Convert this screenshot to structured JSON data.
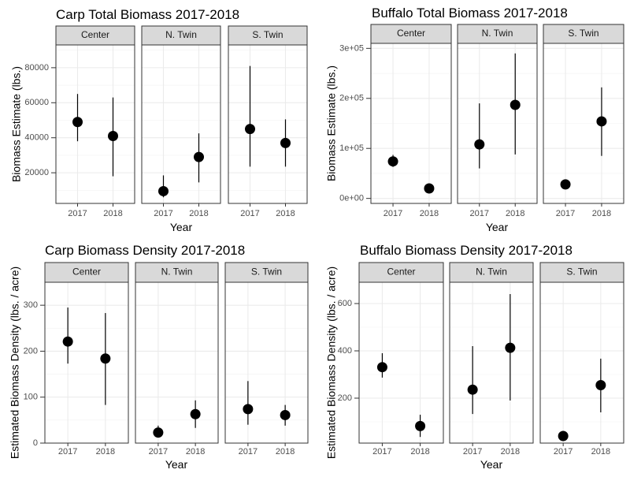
{
  "chart_data": [
    {
      "type": "scatter",
      "title": "Carp Total Biomass 2017-2018",
      "xlabel": "Year",
      "ylabel": "Biomass Estimate (lbs.)",
      "ylim": [
        2500,
        93000
      ],
      "yticks": [
        20000,
        40000,
        60000,
        80000
      ],
      "ytick_labels": [
        "20000",
        "40000",
        "60000",
        "80000"
      ],
      "categories": [
        "2017",
        "2018"
      ],
      "grid": true,
      "panels": [
        {
          "name": "Center",
          "points": [
            {
              "x": "2017",
              "y": 49000,
              "lo": 38000,
              "hi": 65000
            },
            {
              "x": "2018",
              "y": 41000,
              "lo": 18000,
              "hi": 63000
            }
          ]
        },
        {
          "name": "N. Twin",
          "points": [
            {
              "x": "2017",
              "y": 9500,
              "lo": 6000,
              "hi": 18500
            },
            {
              "x": "2018",
              "y": 29000,
              "lo": 14500,
              "hi": 42500
            }
          ]
        },
        {
          "name": "S. Twin",
          "points": [
            {
              "x": "2017",
              "y": 45000,
              "lo": 23500,
              "hi": 81000
            },
            {
              "x": "2018",
              "y": 37000,
              "lo": 23500,
              "hi": 50500
            }
          ]
        }
      ]
    },
    {
      "type": "scatter",
      "title": "Buffalo Total Biomass 2017-2018",
      "xlabel": "Year",
      "ylabel": "Biomass Estimate (lbs.)",
      "ylim": [
        -10000,
        310000
      ],
      "yticks": [
        0,
        100000,
        200000,
        300000
      ],
      "ytick_labels": [
        "0e+00",
        "1e+05",
        "2e+05",
        "3e+05"
      ],
      "categories": [
        "2017",
        "2018"
      ],
      "grid": true,
      "panels": [
        {
          "name": "Center",
          "points": [
            {
              "x": "2017",
              "y": 74000,
              "lo": 63000,
              "hi": 87000
            },
            {
              "x": "2018",
              "y": 20000,
              "lo": 12000,
              "hi": 29000
            }
          ]
        },
        {
          "name": "N. Twin",
          "points": [
            {
              "x": "2017",
              "y": 108000,
              "lo": 60000,
              "hi": 190000
            },
            {
              "x": "2018",
              "y": 187000,
              "lo": 88000,
              "hi": 290000
            }
          ]
        },
        {
          "name": "S. Twin",
          "points": [
            {
              "x": "2017",
              "y": 28000,
              "lo": 22000,
              "hi": 34000
            },
            {
              "x": "2018",
              "y": 154000,
              "lo": 85000,
              "hi": 222000
            }
          ]
        }
      ]
    },
    {
      "type": "scatter",
      "title": "Carp Biomass Density 2017-2018",
      "xlabel": "Year",
      "ylabel": "Estimated Biomass Density (lbs. / acre)",
      "ylim": [
        0,
        350
      ],
      "yticks": [
        0,
        100,
        200,
        300
      ],
      "ytick_labels": [
        "0",
        "100",
        "200",
        "300"
      ],
      "categories": [
        "2017",
        "2018"
      ],
      "grid": true,
      "panels": [
        {
          "name": "Center",
          "points": [
            {
              "x": "2017",
              "y": 221,
              "lo": 173,
              "hi": 295
            },
            {
              "x": "2018",
              "y": 184,
              "lo": 83,
              "hi": 283
            }
          ]
        },
        {
          "name": "N. Twin",
          "points": [
            {
              "x": "2017",
              "y": 23,
              "lo": 12,
              "hi": 38
            },
            {
              "x": "2018",
              "y": 63,
              "lo": 33,
              "hi": 93
            }
          ]
        },
        {
          "name": "S. Twin",
          "points": [
            {
              "x": "2017",
              "y": 74,
              "lo": 40,
              "hi": 135
            },
            {
              "x": "2018",
              "y": 61,
              "lo": 38,
              "hi": 83
            }
          ]
        }
      ]
    },
    {
      "type": "scatter",
      "title": "Buffalo Biomass Density 2017-2018",
      "xlabel": "Year",
      "ylabel": "Estimated Biomass Density (lbs. / acre)",
      "ylim": [
        10,
        690
      ],
      "yticks": [
        200,
        400,
        600
      ],
      "ytick_labels": [
        "200",
        "400",
        "600"
      ],
      "categories": [
        "2017",
        "2018"
      ],
      "grid": true,
      "panels": [
        {
          "name": "Center",
          "points": [
            {
              "x": "2017",
              "y": 331,
              "lo": 287,
              "hi": 390
            },
            {
              "x": "2018",
              "y": 82,
              "lo": 36,
              "hi": 130
            }
          ]
        },
        {
          "name": "N. Twin",
          "points": [
            {
              "x": "2017",
              "y": 236,
              "lo": 133,
              "hi": 420
            },
            {
              "x": "2018",
              "y": 413,
              "lo": 190,
              "hi": 640
            }
          ]
        },
        {
          "name": "S. Twin",
          "points": [
            {
              "x": "2017",
              "y": 40,
              "lo": 34,
              "hi": 47
            },
            {
              "x": "2018",
              "y": 255,
              "lo": 140,
              "hi": 367
            }
          ]
        }
      ]
    }
  ]
}
